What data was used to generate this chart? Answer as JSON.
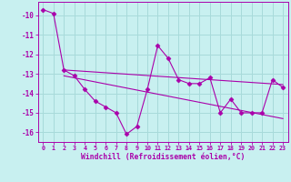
{
  "xlabel": "Windchill (Refroidissement éolien,°C)",
  "background_color": "#c8f0f0",
  "grid_color": "#a8dada",
  "line_color": "#aa00aa",
  "hours": [
    0,
    1,
    2,
    3,
    4,
    5,
    6,
    7,
    8,
    9,
    10,
    11,
    12,
    13,
    14,
    15,
    16,
    17,
    18,
    19,
    20,
    21,
    22,
    23
  ],
  "series1": [
    -9.7,
    -9.9,
    -12.8,
    -13.1,
    -13.8,
    -14.4,
    -14.7,
    -15.0,
    -16.1,
    -15.7,
    -13.8,
    -11.55,
    -12.2,
    -13.3,
    -13.5,
    -13.5,
    -13.2,
    -15.0,
    -14.3,
    -15.0,
    -15.0,
    -15.0,
    -13.3,
    -13.7
  ],
  "trend1_x": [
    2,
    23
  ],
  "trend1_y": [
    -12.8,
    -13.55
  ],
  "trend2_x": [
    2,
    23
  ],
  "trend2_y": [
    -13.1,
    -15.3
  ],
  "ylim": [
    -16.5,
    -9.3
  ],
  "xlim": [
    -0.5,
    23.5
  ],
  "yticks": [
    -16,
    -15,
    -14,
    -13,
    -12,
    -11,
    -10
  ]
}
